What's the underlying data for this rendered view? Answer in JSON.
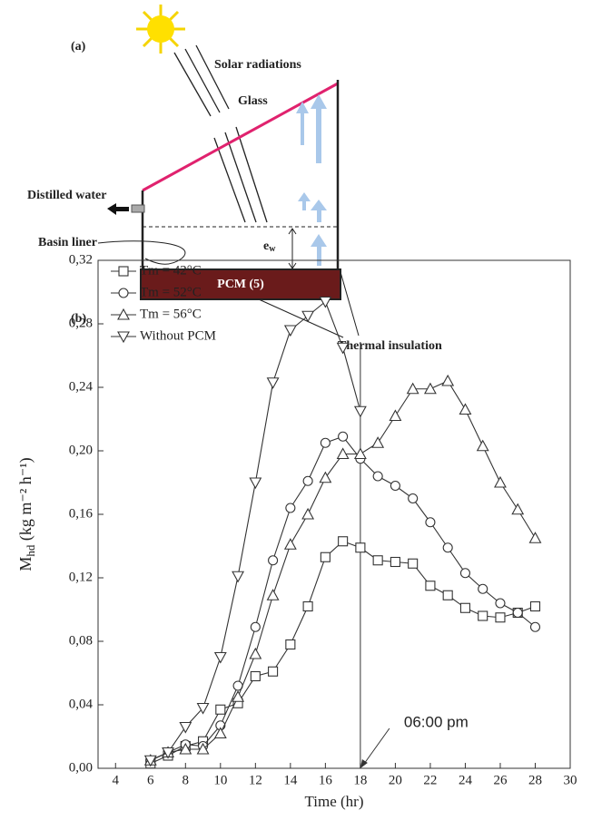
{
  "diagram": {
    "panel_a": "(a)",
    "panel_b": "(b)",
    "solar": "Solar radiations",
    "glass": "Glass",
    "distilled": "Distilled water",
    "basin": "Basin liner",
    "ew": "e",
    "ew_sub": "w",
    "pcm": "PCM (5)",
    "insulation": "Thermal insulation"
  },
  "chart_data": {
    "type": "line",
    "x_label": "Time (hr)",
    "y_label": "M",
    "y_label_sub": "hd",
    "y_label_units": " (kg m⁻² h⁻¹)",
    "x": [
      6,
      7,
      8,
      9,
      10,
      11,
      12,
      13,
      14,
      15,
      16,
      17,
      18,
      19,
      20,
      21,
      22,
      23,
      24,
      25,
      26,
      27,
      28
    ],
    "series": [
      {
        "name": "Tm = 42°C",
        "marker": "square",
        "color": "#333333",
        "values": [
          0.003,
          0.008,
          0.014,
          0.017,
          0.037,
          0.041,
          0.058,
          0.061,
          0.078,
          0.102,
          0.133,
          0.143,
          0.139,
          0.131,
          0.13,
          0.129,
          0.115,
          0.109,
          0.101,
          0.096,
          0.095,
          0.098,
          0.102
        ]
      },
      {
        "name": "Tm = 52°C",
        "marker": "circle",
        "color": "#333333",
        "values": [
          0.005,
          0.01,
          0.015,
          0.014,
          0.027,
          0.052,
          0.089,
          0.131,
          0.164,
          0.181,
          0.205,
          0.209,
          0.195,
          0.184,
          0.178,
          0.17,
          0.155,
          0.139,
          0.123,
          0.113,
          0.104,
          0.098,
          0.089
        ]
      },
      {
        "name": "Tm = 56°C",
        "marker": "triangle-up",
        "color": "#333333",
        "values": [
          0.005,
          0.01,
          0.012,
          0.012,
          0.022,
          0.045,
          0.072,
          0.109,
          0.141,
          0.16,
          0.183,
          0.198,
          0.198,
          0.205,
          0.222,
          0.239,
          0.239,
          0.244,
          0.226,
          0.203,
          0.18,
          0.163,
          0.145
        ]
      },
      {
        "name": "Without PCM",
        "marker": "triangle-down",
        "color": "#333333",
        "values": [
          0.005,
          0.01,
          0.026,
          0.038,
          0.07,
          0.121,
          0.18,
          0.243,
          0.276,
          0.285,
          0.294,
          0.265,
          0.225,
          null,
          null,
          null,
          null,
          null,
          null,
          null,
          null,
          null,
          null
        ]
      }
    ],
    "xlim": [
      3,
      30
    ],
    "xticks": [
      4,
      6,
      8,
      10,
      12,
      14,
      16,
      18,
      20,
      22,
      24,
      26,
      28,
      30
    ],
    "ylim": [
      0,
      0.32
    ],
    "yticks": [
      {
        "value": 0,
        "label": "0,00"
      },
      {
        "value": 0.04,
        "label": "0,04"
      },
      {
        "value": 0.08,
        "label": "0,08"
      },
      {
        "value": 0.12,
        "label": "0,12"
      },
      {
        "value": 0.16,
        "label": "0,16"
      },
      {
        "value": 0.2,
        "label": "0,20"
      },
      {
        "value": 0.24,
        "label": "0,24"
      },
      {
        "value": 0.28,
        "label": "0,28"
      },
      {
        "value": 0.32,
        "label": "0,32"
      }
    ],
    "annotation": {
      "text": "06:00 pm",
      "x": 18
    },
    "legend": "top-left"
  }
}
